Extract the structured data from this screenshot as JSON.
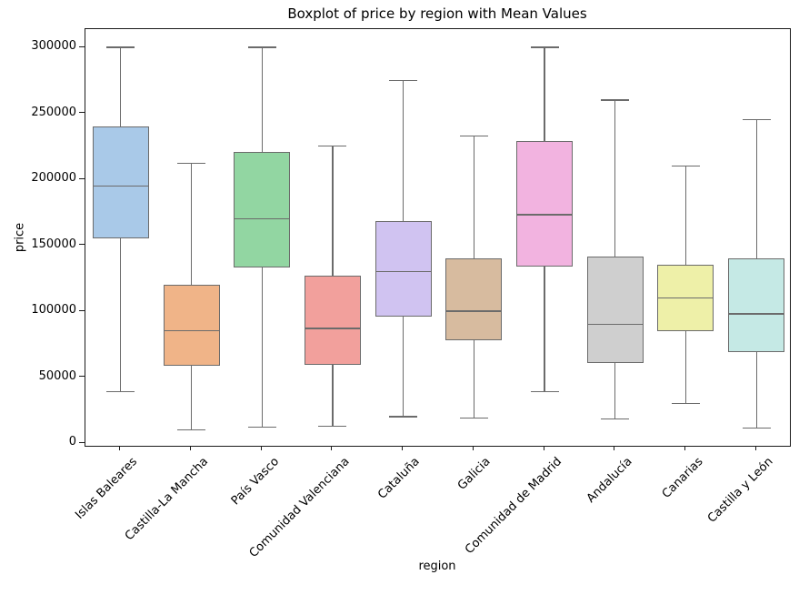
{
  "title": "Boxplot of price by region with Mean Values",
  "axes": {
    "xlabel": "region",
    "ylabel": "price"
  },
  "chart_data": {
    "type": "boxplot",
    "title": "Boxplot of price by region with Mean Values",
    "xlabel": "region",
    "ylabel": "price",
    "ylim": [
      -4500,
      314500
    ],
    "yticks": [
      0,
      50000,
      100000,
      150000,
      200000,
      250000,
      300000
    ],
    "grid": false,
    "legend": "none",
    "box_edge_color": "#6b6b6b",
    "categories": [
      "Islas Baleares",
      "Castilla-La Mancha",
      "País Vasco",
      "Comunidad Valenciana",
      "Cataluña",
      "Galicia",
      "Comunidad de Madrid",
      "Andalucía",
      "Canarias",
      "Castilla y León"
    ],
    "series": [
      {
        "name": "Islas Baleares",
        "whisker_low": 39000,
        "q1": 155000,
        "median": 195000,
        "q3": 240000,
        "whisker_high": 300000,
        "color": "#a9c9e8"
      },
      {
        "name": "Castilla-La Mancha",
        "whisker_low": 10000,
        "q1": 58500,
        "median": 85000,
        "q3": 120000,
        "whisker_high": 212000,
        "color": "#f0b488"
      },
      {
        "name": "País Vasco",
        "whisker_low": 12000,
        "q1": 133000,
        "median": 170000,
        "q3": 220500,
        "whisker_high": 300000,
        "color": "#92d6a2"
      },
      {
        "name": "Comunidad Valenciana",
        "whisker_low": 13000,
        "q1": 59000,
        "median": 87000,
        "q3": 127000,
        "whisker_high": 225000,
        "color": "#f2a09c"
      },
      {
        "name": "Cataluña",
        "whisker_low": 20000,
        "q1": 96000,
        "median": 130000,
        "q3": 168000,
        "whisker_high": 275000,
        "color": "#d0c3f1"
      },
      {
        "name": "Galicia",
        "whisker_low": 19000,
        "q1": 78000,
        "median": 100000,
        "q3": 140000,
        "whisker_high": 233000,
        "color": "#d7bb9f"
      },
      {
        "name": "Comunidad de Madrid",
        "whisker_low": 39000,
        "q1": 133500,
        "median": 173000,
        "q3": 229000,
        "whisker_high": 300000,
        "color": "#f2b3e0"
      },
      {
        "name": "Andalucía",
        "whisker_low": 18500,
        "q1": 61000,
        "median": 90000,
        "q3": 141500,
        "whisker_high": 260000,
        "color": "#cfcfcf"
      },
      {
        "name": "Canarias",
        "whisker_low": 30000,
        "q1": 85000,
        "median": 110000,
        "q3": 135500,
        "whisker_high": 210000,
        "color": "#eef0a8"
      },
      {
        "name": "Castilla y León",
        "whisker_low": 11500,
        "q1": 69000,
        "median": 98000,
        "q3": 140000,
        "whisker_high": 245000,
        "color": "#c5e9e5"
      }
    ]
  }
}
